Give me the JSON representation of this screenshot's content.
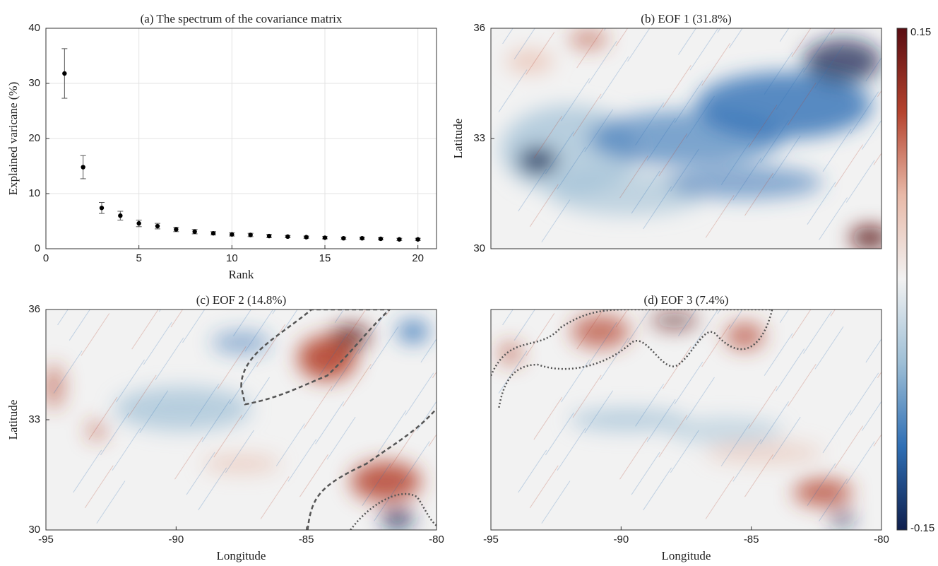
{
  "chart_data": [
    {
      "type": "errorbar",
      "title": "(a) The spectrum of the covariance matrix",
      "xlabel": "Rank",
      "ylabel": "Explained varicane (%)",
      "x": [
        1,
        2,
        3,
        4,
        5,
        6,
        7,
        8,
        9,
        10,
        11,
        12,
        13,
        14,
        15,
        16,
        17,
        18,
        19,
        20
      ],
      "values": [
        31.8,
        14.8,
        7.4,
        6.0,
        4.6,
        4.1,
        3.5,
        3.1,
        2.8,
        2.6,
        2.5,
        2.3,
        2.2,
        2.1,
        2.0,
        1.9,
        1.9,
        1.8,
        1.7,
        1.7
      ],
      "errors": [
        4.5,
        2.1,
        1.0,
        0.8,
        0.6,
        0.5,
        0.4,
        0.4,
        0.3,
        0.3,
        0.3,
        0.3,
        0.2,
        0.2,
        0.2,
        0.2,
        0.2,
        0.2,
        0.2,
        0.2
      ],
      "color": "#000000",
      "xlim": [
        0,
        21
      ],
      "xticks": [
        0,
        5,
        10,
        15,
        20
      ],
      "ylim": [
        0,
        40
      ],
      "yticks": [
        0,
        10,
        20,
        30,
        40
      ],
      "grid": true
    },
    {
      "type": "heatmap",
      "title": "(b) EOF 1 (31.8%)",
      "ylabel": "Latitude",
      "xlim": [
        -95,
        -80
      ],
      "ylim": [
        30,
        36
      ],
      "yticks": [
        30,
        33,
        36
      ],
      "grid": false
    },
    {
      "type": "heatmap",
      "title": "(c) EOF 2 (14.8%)",
      "xlabel": "Longitude",
      "ylabel": "Latitude",
      "xlim": [
        -95,
        -80
      ],
      "ylim": [
        30,
        36
      ],
      "xticks": [
        -95,
        -90,
        -85,
        -80
      ],
      "yticks": [
        30,
        33,
        36
      ],
      "grid": false
    },
    {
      "type": "heatmap",
      "title": "(d) EOF 3 (7.4%)",
      "xlabel": "Longitude",
      "xlim": [
        -95,
        -80
      ],
      "ylim": [
        30,
        36
      ],
      "xticks": [
        -95,
        -90,
        -85,
        -80
      ],
      "grid": false
    }
  ],
  "colorbar": {
    "lim": [
      -0.15,
      0.15
    ],
    "ticks": [
      -0.15,
      0.15
    ],
    "colors": [
      "#0f1f4d",
      "#2f6fb5",
      "#9ebfd6",
      "#f2f2f2",
      "#e8b9a8",
      "#b5432e",
      "#5a0d12"
    ]
  }
}
